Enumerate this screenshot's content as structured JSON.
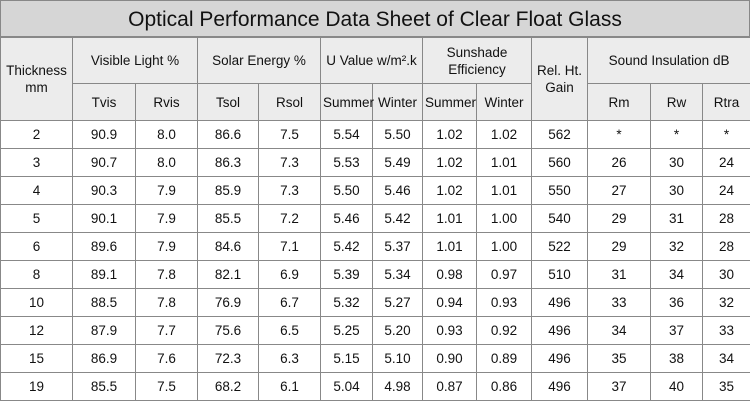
{
  "title": "Optical Performance Data Sheet of Clear Float Glass",
  "headers": {
    "groups": [
      {
        "label": "Thickness mm",
        "colspan": 1,
        "rowspan": 2
      },
      {
        "label": "Visible Light %",
        "colspan": 2,
        "rowspan": 1
      },
      {
        "label": "Solar Energy %",
        "colspan": 2,
        "rowspan": 1
      },
      {
        "label": "U Value w/m².k",
        "colspan": 2,
        "rowspan": 1
      },
      {
        "label": "Sunshade Efficiency",
        "colspan": 2,
        "rowspan": 1
      },
      {
        "label": "Rel. Ht. Gain",
        "colspan": 1,
        "rowspan": 2
      },
      {
        "label": "Sound Insulation dB",
        "colspan": 3,
        "rowspan": 1
      }
    ],
    "sub": [
      "Tvis",
      "Rvis",
      "Tsol",
      "Rsol",
      "Summer",
      "Winter",
      "Summer",
      "Winter",
      "Rm",
      "Rw",
      "Rtra"
    ]
  },
  "table": {
    "rows": [
      [
        "2",
        "90.9",
        "8.0",
        "86.6",
        "7.5",
        "5.54",
        "5.50",
        "1.02",
        "1.02",
        "562",
        "*",
        "*",
        "*"
      ],
      [
        "3",
        "90.7",
        "8.0",
        "86.3",
        "7.3",
        "5.53",
        "5.49",
        "1.02",
        "1.01",
        "560",
        "26",
        "30",
        "24"
      ],
      [
        "4",
        "90.3",
        "7.9",
        "85.9",
        "7.3",
        "5.50",
        "5.46",
        "1.02",
        "1.01",
        "550",
        "27",
        "30",
        "24"
      ],
      [
        "5",
        "90.1",
        "7.9",
        "85.5",
        "7.2",
        "5.46",
        "5.42",
        "1.01",
        "1.00",
        "540",
        "29",
        "31",
        "28"
      ],
      [
        "6",
        "89.6",
        "7.9",
        "84.6",
        "7.1",
        "5.42",
        "5.37",
        "1.01",
        "1.00",
        "522",
        "29",
        "32",
        "28"
      ],
      [
        "8",
        "89.1",
        "7.8",
        "82.1",
        "6.9",
        "5.39",
        "5.34",
        "0.98",
        "0.97",
        "510",
        "31",
        "34",
        "30"
      ],
      [
        "10",
        "88.5",
        "7.8",
        "76.9",
        "6.7",
        "5.32",
        "5.27",
        "0.94",
        "0.93",
        "496",
        "33",
        "36",
        "32"
      ],
      [
        "12",
        "87.9",
        "7.7",
        "75.6",
        "6.5",
        "5.25",
        "5.20",
        "0.93",
        "0.92",
        "496",
        "34",
        "37",
        "33"
      ],
      [
        "15",
        "86.9",
        "7.6",
        "72.3",
        "6.3",
        "5.15",
        "5.10",
        "0.90",
        "0.89",
        "496",
        "35",
        "38",
        "34"
      ],
      [
        "19",
        "85.5",
        "7.5",
        "68.2",
        "6.1",
        "5.04",
        "4.98",
        "0.87",
        "0.86",
        "496",
        "37",
        "40",
        "35"
      ]
    ]
  }
}
